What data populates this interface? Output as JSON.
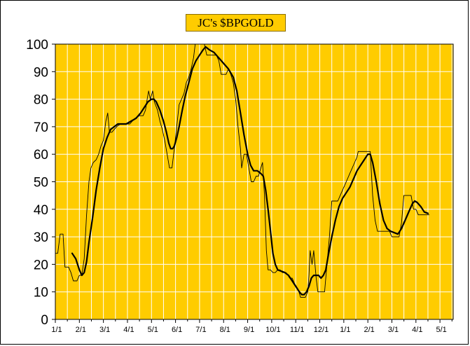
{
  "chart_data": {
    "type": "line",
    "title": "JC's $BPGOLD",
    "ylim": [
      0,
      100
    ],
    "y_ticks": [
      0,
      10,
      20,
      30,
      40,
      50,
      60,
      70,
      80,
      90,
      100
    ],
    "x_tick_labels": [
      "1/1",
      "2/1",
      "3/1",
      "4/1",
      "5/1",
      "6/1",
      "7/1",
      "8/1",
      "9/1",
      "10/1",
      "11/1",
      "12/1",
      "1/1",
      "2/1",
      "3/1",
      "4/1",
      "5/1"
    ],
    "x_range": [
      0,
      16.55
    ],
    "grid": true,
    "colors": {
      "background": "#ffcc00",
      "grid": "#ffffff",
      "series_raw": "#000000",
      "series_avg": "#000000"
    },
    "series": [
      {
        "style": "thin-step",
        "points": [
          [
            0.0,
            24
          ],
          [
            0.1,
            24
          ],
          [
            0.2,
            31
          ],
          [
            0.32,
            31
          ],
          [
            0.4,
            19
          ],
          [
            0.55,
            19
          ],
          [
            0.65,
            17
          ],
          [
            0.75,
            14
          ],
          [
            0.9,
            14
          ],
          [
            1.0,
            16
          ],
          [
            1.1,
            16
          ],
          [
            1.2,
            22
          ],
          [
            1.3,
            38
          ],
          [
            1.4,
            50
          ],
          [
            1.48,
            55
          ],
          [
            1.58,
            57
          ],
          [
            1.7,
            58
          ],
          [
            1.8,
            60
          ],
          [
            1.9,
            63
          ],
          [
            2.0,
            65
          ],
          [
            2.1,
            72
          ],
          [
            2.18,
            75
          ],
          [
            2.25,
            68
          ],
          [
            2.35,
            68
          ],
          [
            2.45,
            69
          ],
          [
            2.55,
            70
          ],
          [
            2.7,
            71
          ],
          [
            2.9,
            71
          ],
          [
            3.1,
            71
          ],
          [
            3.3,
            73
          ],
          [
            3.5,
            74
          ],
          [
            3.65,
            74
          ],
          [
            3.75,
            76
          ],
          [
            3.82,
            80
          ],
          [
            3.88,
            83
          ],
          [
            3.95,
            80
          ],
          [
            4.05,
            83
          ],
          [
            4.12,
            79
          ],
          [
            4.25,
            76
          ],
          [
            4.35,
            72
          ],
          [
            4.45,
            69
          ],
          [
            4.55,
            65
          ],
          [
            4.65,
            60
          ],
          [
            4.75,
            55
          ],
          [
            4.85,
            55
          ],
          [
            4.95,
            62
          ],
          [
            5.05,
            70
          ],
          [
            5.15,
            78
          ],
          [
            5.25,
            80
          ],
          [
            5.35,
            82
          ],
          [
            5.45,
            86
          ],
          [
            5.55,
            88
          ],
          [
            5.65,
            91
          ],
          [
            5.75,
            95
          ],
          [
            5.82,
            100
          ],
          [
            6.0,
            100
          ],
          [
            6.2,
            100
          ],
          [
            6.3,
            96
          ],
          [
            6.5,
            96
          ],
          [
            6.7,
            96
          ],
          [
            6.8,
            94
          ],
          [
            6.9,
            89
          ],
          [
            7.0,
            89
          ],
          [
            7.1,
            89
          ],
          [
            7.2,
            91
          ],
          [
            7.3,
            89
          ],
          [
            7.4,
            86
          ],
          [
            7.5,
            80
          ],
          [
            7.6,
            70
          ],
          [
            7.7,
            62
          ],
          [
            7.75,
            55
          ],
          [
            7.85,
            60
          ],
          [
            7.95,
            60
          ],
          [
            8.05,
            55
          ],
          [
            8.15,
            50
          ],
          [
            8.25,
            50
          ],
          [
            8.35,
            52
          ],
          [
            8.45,
            52
          ],
          [
            8.55,
            55
          ],
          [
            8.62,
            57
          ],
          [
            8.7,
            45
          ],
          [
            8.78,
            25
          ],
          [
            8.85,
            18
          ],
          [
            8.95,
            18
          ],
          [
            9.05,
            17
          ],
          [
            9.15,
            17
          ],
          [
            9.25,
            18
          ],
          [
            9.35,
            18
          ],
          [
            9.45,
            17
          ],
          [
            9.6,
            17
          ],
          [
            9.75,
            15
          ],
          [
            9.85,
            15
          ],
          [
            9.95,
            13
          ],
          [
            10.1,
            11
          ],
          [
            10.2,
            8
          ],
          [
            10.3,
            8
          ],
          [
            10.4,
            8
          ],
          [
            10.5,
            10
          ],
          [
            10.55,
            16
          ],
          [
            10.6,
            25
          ],
          [
            10.68,
            20
          ],
          [
            10.75,
            25
          ],
          [
            10.85,
            15
          ],
          [
            10.92,
            10
          ],
          [
            11.0,
            10
          ],
          [
            11.1,
            10
          ],
          [
            11.2,
            10
          ],
          [
            11.3,
            20
          ],
          [
            11.4,
            30
          ],
          [
            11.5,
            43
          ],
          [
            11.6,
            43
          ],
          [
            11.75,
            43
          ],
          [
            11.85,
            45
          ],
          [
            11.95,
            47
          ],
          [
            12.05,
            49
          ],
          [
            12.15,
            51
          ],
          [
            12.25,
            53
          ],
          [
            12.35,
            55
          ],
          [
            12.45,
            57
          ],
          [
            12.55,
            59
          ],
          [
            12.6,
            61
          ],
          [
            12.7,
            61
          ],
          [
            12.8,
            61
          ],
          [
            12.9,
            61
          ],
          [
            13.0,
            61
          ],
          [
            13.1,
            61
          ],
          [
            13.2,
            45
          ],
          [
            13.3,
            36
          ],
          [
            13.4,
            32
          ],
          [
            13.5,
            32
          ],
          [
            13.7,
            32
          ],
          [
            13.9,
            32
          ],
          [
            14.0,
            30
          ],
          [
            14.15,
            30
          ],
          [
            14.3,
            30
          ],
          [
            14.4,
            35
          ],
          [
            14.5,
            45
          ],
          [
            14.6,
            45
          ],
          [
            14.7,
            45
          ],
          [
            14.8,
            45
          ],
          [
            14.9,
            40
          ],
          [
            15.0,
            40
          ],
          [
            15.1,
            38
          ],
          [
            15.3,
            38
          ],
          [
            15.55,
            38
          ]
        ]
      },
      {
        "style": "thick-smooth",
        "points": [
          [
            0.7,
            24
          ],
          [
            0.85,
            22
          ],
          [
            1.0,
            18
          ],
          [
            1.1,
            16
          ],
          [
            1.2,
            17
          ],
          [
            1.3,
            21
          ],
          [
            1.4,
            28
          ],
          [
            1.55,
            37
          ],
          [
            1.7,
            47
          ],
          [
            1.85,
            55
          ],
          [
            2.0,
            62
          ],
          [
            2.15,
            66
          ],
          [
            2.3,
            69
          ],
          [
            2.45,
            70
          ],
          [
            2.6,
            71
          ],
          [
            2.75,
            71
          ],
          [
            2.95,
            71
          ],
          [
            3.15,
            72
          ],
          [
            3.35,
            73
          ],
          [
            3.55,
            75
          ],
          [
            3.7,
            77
          ],
          [
            3.85,
            79
          ],
          [
            4.0,
            80
          ],
          [
            4.1,
            80
          ],
          [
            4.2,
            79
          ],
          [
            4.35,
            76
          ],
          [
            4.5,
            72
          ],
          [
            4.62,
            68
          ],
          [
            4.72,
            64
          ],
          [
            4.8,
            62
          ],
          [
            4.88,
            62
          ],
          [
            4.95,
            63
          ],
          [
            5.05,
            66
          ],
          [
            5.15,
            70
          ],
          [
            5.28,
            76
          ],
          [
            5.4,
            81
          ],
          [
            5.55,
            86
          ],
          [
            5.7,
            91
          ],
          [
            5.85,
            94
          ],
          [
            6.0,
            96
          ],
          [
            6.15,
            98
          ],
          [
            6.25,
            99
          ],
          [
            6.4,
            98
          ],
          [
            6.6,
            97
          ],
          [
            6.8,
            95
          ],
          [
            7.0,
            93
          ],
          [
            7.2,
            91
          ],
          [
            7.4,
            88
          ],
          [
            7.55,
            83
          ],
          [
            7.7,
            75
          ],
          [
            7.85,
            67
          ],
          [
            8.0,
            60
          ],
          [
            8.12,
            56
          ],
          [
            8.25,
            54
          ],
          [
            8.4,
            54
          ],
          [
            8.55,
            53
          ],
          [
            8.65,
            52
          ],
          [
            8.75,
            47
          ],
          [
            8.85,
            40
          ],
          [
            8.95,
            32
          ],
          [
            9.05,
            24
          ],
          [
            9.15,
            20
          ],
          [
            9.25,
            18
          ],
          [
            9.4,
            17.5
          ],
          [
            9.55,
            17
          ],
          [
            9.7,
            16
          ],
          [
            9.85,
            14
          ],
          [
            10.0,
            12
          ],
          [
            10.15,
            10
          ],
          [
            10.25,
            9
          ],
          [
            10.35,
            9
          ],
          [
            10.45,
            10
          ],
          [
            10.55,
            12
          ],
          [
            10.65,
            15
          ],
          [
            10.75,
            16
          ],
          [
            10.85,
            16
          ],
          [
            10.95,
            16
          ],
          [
            11.05,
            15
          ],
          [
            11.15,
            16
          ],
          [
            11.25,
            18
          ],
          [
            11.35,
            23
          ],
          [
            11.5,
            30
          ],
          [
            11.65,
            36
          ],
          [
            11.8,
            41
          ],
          [
            11.95,
            44
          ],
          [
            12.1,
            46
          ],
          [
            12.25,
            48
          ],
          [
            12.4,
            51
          ],
          [
            12.55,
            54
          ],
          [
            12.7,
            56
          ],
          [
            12.85,
            58
          ],
          [
            13.0,
            60
          ],
          [
            13.1,
            60
          ],
          [
            13.2,
            57
          ],
          [
            13.35,
            50
          ],
          [
            13.5,
            42
          ],
          [
            13.65,
            36
          ],
          [
            13.8,
            33
          ],
          [
            13.95,
            32
          ],
          [
            14.1,
            31.5
          ],
          [
            14.25,
            31
          ],
          [
            14.4,
            33
          ],
          [
            14.55,
            36
          ],
          [
            14.7,
            39
          ],
          [
            14.85,
            42
          ],
          [
            14.95,
            43
          ],
          [
            15.05,
            42.5
          ],
          [
            15.2,
            41
          ],
          [
            15.35,
            39
          ],
          [
            15.5,
            38.5
          ]
        ]
      }
    ]
  }
}
